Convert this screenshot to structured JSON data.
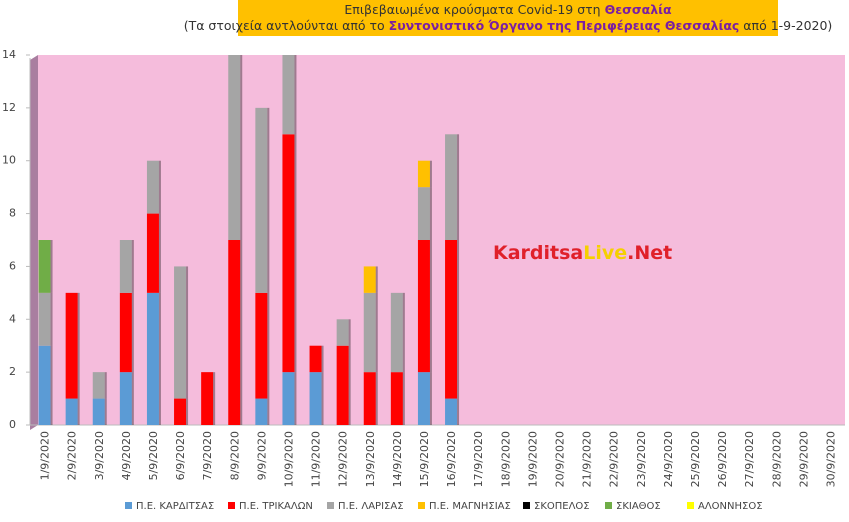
{
  "chart_data": {
    "type": "bar",
    "stacked": true,
    "title": {
      "line1": [
        "Επιβεβαιωμένα κρούσματα Covid-19 στη ",
        "Θεσσαλία"
      ],
      "line2": [
        "(Τα στοιχεία αντλούνται από το ",
        "Συντονιστικό Όργανο της Περιφέρειας Θεσσαλίας",
        " από 1-9-2020)"
      ]
    },
    "watermark": [
      "Karditsa",
      "Live",
      ".Net"
    ],
    "categories": [
      "1/9/2020",
      "2/9/2020",
      "3/9/2020",
      "4/9/2020",
      "5/9/2020",
      "6/9/2020",
      "7/9/2020",
      "8/9/2020",
      "9/9/2020",
      "10/9/2020",
      "11/9/2020",
      "12/9/2020",
      "13/9/2020",
      "14/9/2020",
      "15/9/2020",
      "16/9/2020",
      "17/9/2020",
      "18/9/2020",
      "19/9/2020",
      "20/9/2020",
      "21/9/2020",
      "22/9/2020",
      "23/9/2020",
      "24/9/2020",
      "25/9/2020",
      "26/9/2020",
      "27/9/2020",
      "28/9/2020",
      "29/9/2020",
      "30/9/2020"
    ],
    "series": [
      {
        "name": "Π.Ε. ΚΑΡΔΙΤΣΑΣ",
        "color": "#5b9bd5",
        "values": [
          3,
          1,
          1,
          2,
          5,
          0,
          0,
          0,
          1,
          2,
          2,
          0,
          0,
          0,
          2,
          1,
          null,
          null,
          null,
          null,
          null,
          null,
          null,
          null,
          null,
          null,
          null,
          null,
          null,
          null
        ]
      },
      {
        "name": "Π.Ε. ΤΡΙΚΑΛΩΝ",
        "color": "#ff0000",
        "values": [
          0,
          4,
          0,
          3,
          3,
          1,
          2,
          7,
          4,
          9,
          1,
          3,
          2,
          2,
          5,
          6,
          null,
          null,
          null,
          null,
          null,
          null,
          null,
          null,
          null,
          null,
          null,
          null,
          null,
          null
        ]
      },
      {
        "name": "Π.Ε. ΛΑΡΙΣΑΣ",
        "color": "#a5a5a5",
        "values": [
          2,
          0,
          1,
          2,
          2,
          5,
          0,
          7,
          7,
          3,
          0,
          1,
          3,
          3,
          2,
          4,
          null,
          null,
          null,
          null,
          null,
          null,
          null,
          null,
          null,
          null,
          null,
          null,
          null,
          null
        ]
      },
      {
        "name": "Π.Ε. ΜΑΓΝΗΣΙΑΣ",
        "color": "#ffc000",
        "values": [
          0,
          0,
          0,
          0,
          0,
          0,
          0,
          0,
          0,
          0,
          0,
          0,
          1,
          0,
          1,
          0,
          null,
          null,
          null,
          null,
          null,
          null,
          null,
          null,
          null,
          null,
          null,
          null,
          null,
          null
        ]
      },
      {
        "name": "ΣΚΟΠΕΛΟΣ",
        "color": "#000000",
        "values": [
          0,
          0,
          0,
          0,
          0,
          0,
          0,
          0,
          0,
          0,
          0,
          0,
          0,
          0,
          0,
          0,
          null,
          null,
          null,
          null,
          null,
          null,
          null,
          null,
          null,
          null,
          null,
          null,
          null,
          null
        ]
      },
      {
        "name": "ΣΚΙΑΘΟΣ",
        "color": "#70ad47",
        "values": [
          2,
          0,
          0,
          0,
          0,
          0,
          0,
          0,
          0,
          0,
          0,
          0,
          0,
          0,
          0,
          0,
          null,
          null,
          null,
          null,
          null,
          null,
          null,
          null,
          null,
          null,
          null,
          null,
          null,
          null
        ]
      },
      {
        "name": "ΑΛΟΝΝΗΣΟΣ",
        "color": "#ffff00",
        "values": [
          0,
          0,
          0,
          0,
          0,
          0,
          0,
          0,
          0,
          0,
          0,
          0,
          0,
          0,
          0,
          0,
          null,
          null,
          null,
          null,
          null,
          null,
          null,
          null,
          null,
          null,
          null,
          null,
          null,
          null
        ]
      }
    ],
    "ylim": [
      0,
      14
    ],
    "yticks": [
      0,
      2,
      4,
      6,
      8,
      10,
      12,
      14
    ],
    "grid": false,
    "legend": "bottom"
  }
}
